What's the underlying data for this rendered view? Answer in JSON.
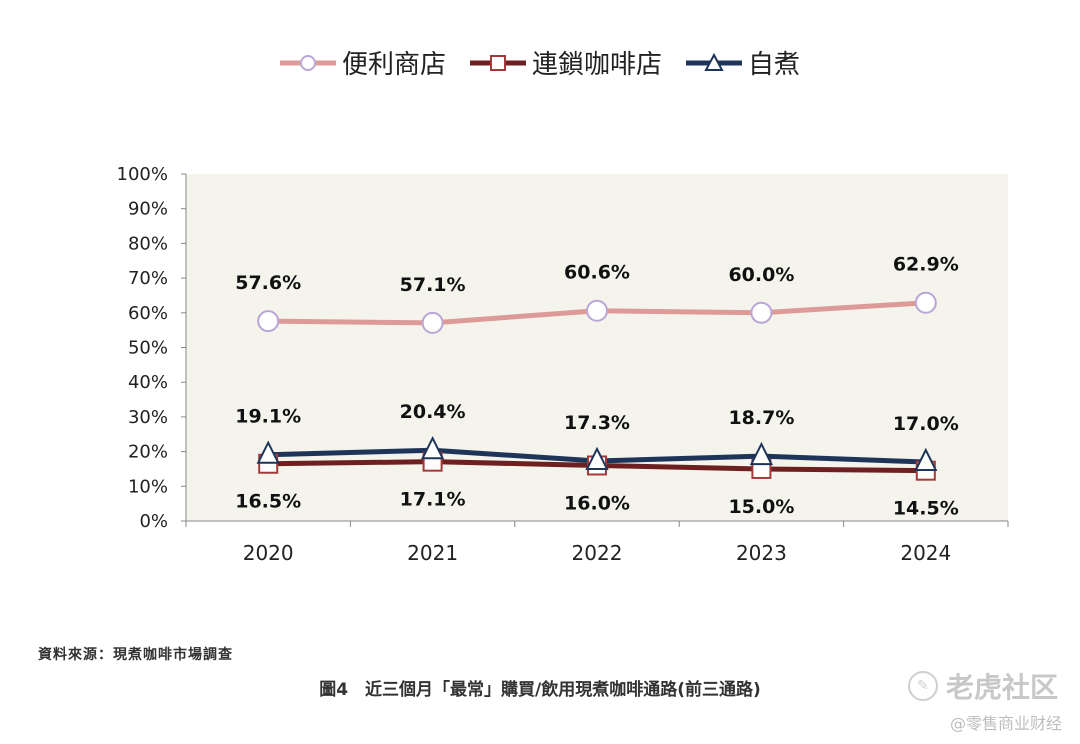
{
  "legend": [
    {
      "label": "便利商店",
      "color": "#de9a98",
      "marker": "circle"
    },
    {
      "label": "連鎖咖啡店",
      "color": "#6e1f1f",
      "marker": "square"
    },
    {
      "label": "自煮",
      "color": "#1e3459",
      "marker": "triangle"
    }
  ],
  "chart_data": {
    "type": "line",
    "categories": [
      "2020",
      "2021",
      "2022",
      "2023",
      "2024"
    ],
    "ylim": [
      0,
      100
    ],
    "y_ticks": [
      "0%",
      "10%",
      "20%",
      "30%",
      "40%",
      "50%",
      "60%",
      "70%",
      "80%",
      "90%",
      "100%"
    ],
    "series": [
      {
        "name": "便利商店",
        "values": [
          57.6,
          57.1,
          60.6,
          60.0,
          62.9
        ],
        "labels": [
          "57.6%",
          "57.1%",
          "60.6%",
          "60.0%",
          "62.9%"
        ],
        "label_position": "above"
      },
      {
        "name": "連鎖咖啡店",
        "values": [
          16.5,
          17.1,
          16.0,
          15.0,
          14.5
        ],
        "labels": [
          "16.5%",
          "17.1%",
          "16.0%",
          "15.0%",
          "14.5%"
        ],
        "label_position": "below"
      },
      {
        "name": "自煮",
        "values": [
          19.1,
          20.4,
          17.3,
          18.7,
          17.0
        ],
        "labels": [
          "19.1%",
          "20.4%",
          "17.3%",
          "18.7%",
          "17.0%"
        ],
        "label_position": "above"
      }
    ],
    "xlabel": "",
    "ylabel": ""
  },
  "source": "資料來源：現煮咖啡市場調查",
  "caption": "圖4　近三個月「最常」購買/飲用現煮咖啡通路(前三通路)",
  "watermark": {
    "brand": "老虎社区",
    "handle": "@零售商业财经"
  }
}
